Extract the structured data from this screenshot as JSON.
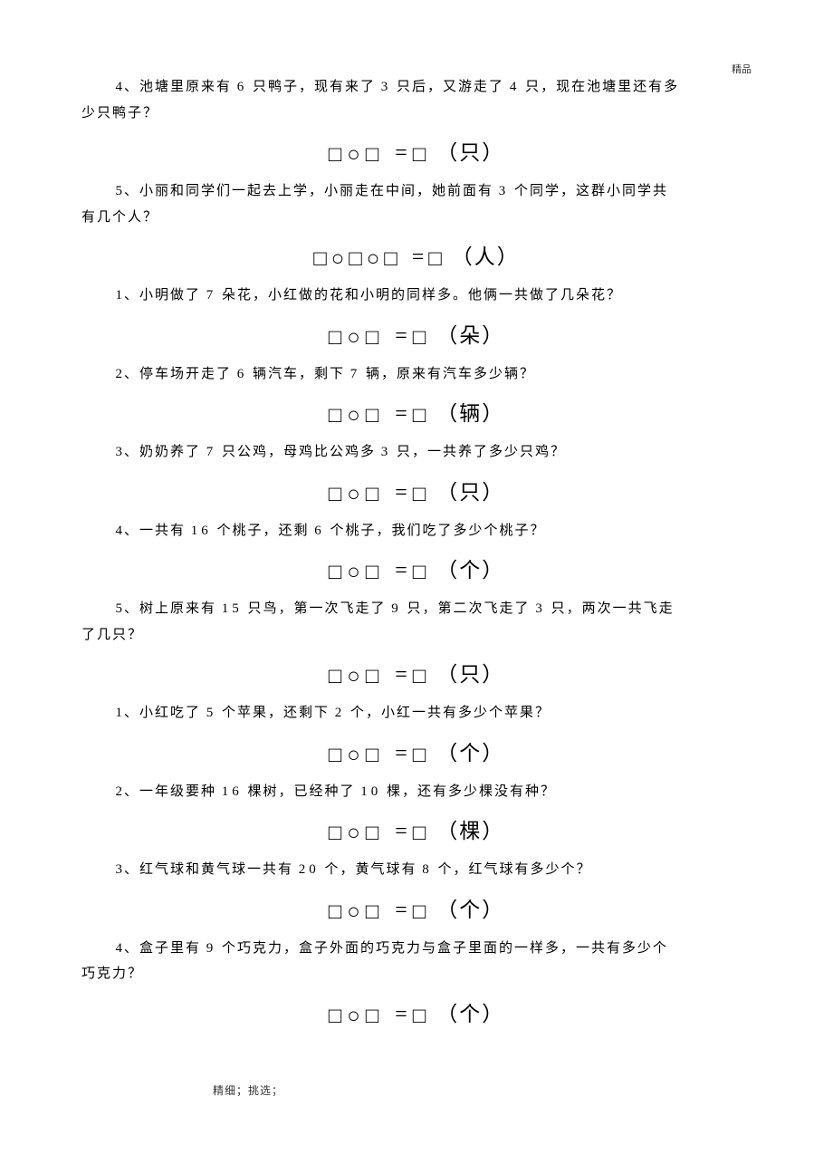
{
  "header": {
    "right": "精品"
  },
  "footer": {
    "text": "精细；挑选；"
  },
  "glyphs": {
    "square": "□",
    "circle": "○",
    "equals": "="
  },
  "problems": [
    {
      "num": "4、",
      "text_a": "池塘里原来有 ",
      "n1": "6",
      "text_b": " 只鸭子，现有来了 ",
      "n2": "3",
      "text_c": " 只后，又游走了 ",
      "n3": "4",
      "text_d": " 只，现在池塘里还有多",
      "cont": "少只鸭子？",
      "eq_type": "3",
      "unit": "（只）"
    },
    {
      "num": "5、",
      "text_a": "小丽和同学们一起去上学，小丽走在中间，她前面有    ",
      "n1": "3",
      "text_b": " 个同学，这群小同学共",
      "cont": "有几个人？",
      "eq_type": "5",
      "unit": "（人）"
    },
    {
      "num": "1、",
      "text_a": "小明做了 ",
      "n1": "7",
      "text_b": " 朵花，小红做的花和小明的同样多。他俩一共做了几朵花？",
      "eq_type": "3",
      "unit": "（朵）"
    },
    {
      "num": "2、",
      "text_a": "停车场开走了 ",
      "n1": "6",
      "text_b": " 辆汽车，剩下 ",
      "n2": "7",
      "text_c": " 辆，原来有汽车多少辆？",
      "eq_type": "3",
      "unit": "（辆）"
    },
    {
      "num": "3、",
      "text_a": "奶奶养了 ",
      "n1": "7",
      "text_b": " 只公鸡，母鸡比公鸡多 ",
      "n2": "3",
      "text_c": " 只，一共养了多少只鸡？",
      "eq_type": "3",
      "unit": "（只）"
    },
    {
      "num": "4、",
      "text_a": "一共有 ",
      "n1": "16",
      "text_b": " 个桃子，还剩 ",
      "n2": "6",
      "text_c": " 个桃子，我们吃了多少个桃子？",
      "eq_type": "3",
      "unit": "（个）"
    },
    {
      "num": "5、",
      "text_a": "树上原来有 ",
      "n1": "15",
      "text_b": " 只鸟，第一次飞走了 ",
      "n2": "9",
      "text_c": " 只，第二次飞走了 ",
      "n3": "3",
      "text_d": " 只，两次一共飞走",
      "cont": "了几只？",
      "eq_type": "3",
      "unit": "（只）"
    },
    {
      "num": "1、",
      "text_a": "小红吃了 ",
      "n1": "5",
      "text_b": " 个苹果，还剩下 ",
      "n2": "2",
      "text_c": " 个，小红一共有多少个苹果？",
      "eq_type": "3",
      "unit": "（个）"
    },
    {
      "num": "2、",
      "text_a": "一年级要种 ",
      "n1": "16",
      "text_b": " 棵树，已经种了 ",
      "n2": "10",
      "text_c": " 棵，还有多少棵没有种？",
      "eq_type": "3",
      "unit": "（棵）"
    },
    {
      "num": "3、",
      "text_a": "红气球和黄气球一共有  ",
      "n1": "20",
      "text_b": " 个，黄气球有 ",
      "n2": "8",
      "text_c": " 个，红气球有多少个？",
      "eq_type": "3",
      "unit": "（个）"
    },
    {
      "num": "4、",
      "text_a": "盒子里有 ",
      "n1": "9",
      "text_b": " 个巧克力，盒子外面的巧克力与盒子里面的一样多，一共有多少个",
      "cont": "巧克力？",
      "eq_type": "3",
      "unit": "（个）"
    }
  ]
}
